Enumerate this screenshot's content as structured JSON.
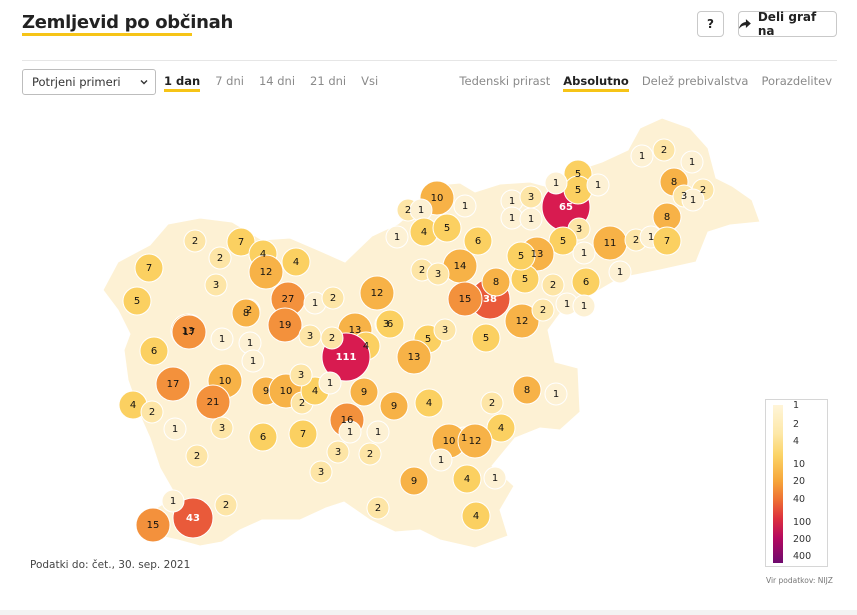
{
  "header": {
    "title": "Zemljevid po občinah",
    "help_label": "?",
    "share_label": "Deli graf na"
  },
  "controls": {
    "selected_metric": "Potrjeni primeri",
    "periods": [
      "1 dan",
      "7 dni",
      "14 dni",
      "21 dni",
      "Vsi"
    ],
    "active_period": "1 dan",
    "modes": [
      "Tedenski prirast",
      "Absolutno",
      "Delež prebivalstva",
      "Porazdelitev"
    ],
    "active_mode": "Absolutno"
  },
  "legend": {
    "ticks": [
      "1",
      "2",
      "4",
      "10",
      "20",
      "40",
      "100",
      "200",
      "400"
    ]
  },
  "footer": {
    "data_date": "Podatki do: čet., 30. sep. 2021",
    "source": "Vir podatkov: NIJZ"
  },
  "colors": {
    "accent": "#f6c417",
    "c0": "#ffffff",
    "c1": "#fdf1d4",
    "c2": "#fde5a6",
    "c4": "#fbd061",
    "c10": "#f7b247",
    "c20": "#f3913c",
    "c40": "#e95a3a",
    "c100": "#d81b50"
  },
  "map": {
    "municipality_counts": [
      "1",
      "2",
      "1",
      "8",
      "3",
      "2",
      "1",
      "65",
      "5",
      "5",
      "1",
      "1",
      "10",
      "1",
      "2",
      "1",
      "1",
      "3",
      "1",
      "1",
      "8",
      "2",
      "7",
      "2",
      "4",
      "12",
      "4",
      "11",
      "2",
      "1",
      "7",
      "3",
      "5",
      "6",
      "1",
      "4",
      "13",
      "14",
      "5",
      "2",
      "3",
      "7",
      "5",
      "3",
      "27",
      "1",
      "2",
      "13",
      "12",
      "38",
      "15",
      "8",
      "5",
      "5",
      "1",
      "1",
      "17",
      "19",
      "3",
      "13",
      "6",
      "3",
      "2",
      "8",
      "12",
      "2",
      "6",
      "1",
      "2",
      "1",
      "6",
      "4",
      "111",
      "5",
      "3",
      "5",
      "1",
      "1",
      "1",
      "2",
      "17",
      "10",
      "21",
      "9",
      "10",
      "2",
      "4",
      "9",
      "1",
      "13",
      "8",
      "9",
      "4",
      "1",
      "2",
      "4",
      "1",
      "10",
      "3",
      "6",
      "7",
      "16",
      "12",
      "2",
      "1",
      "1",
      "2",
      "3",
      "9",
      "1",
      "4",
      "1",
      "2",
      "15",
      "43",
      "4",
      "2",
      "1",
      "3",
      "3",
      "4",
      "1",
      "2"
    ]
  }
}
